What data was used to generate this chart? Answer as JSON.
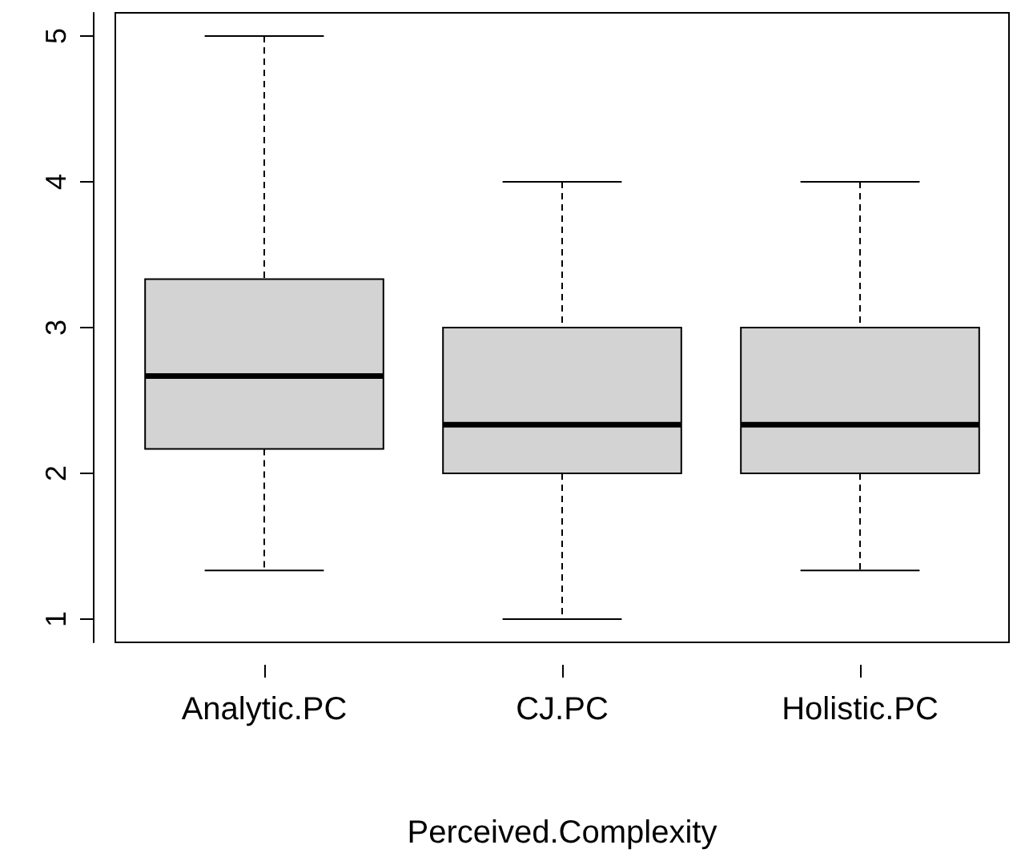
{
  "chart_data": {
    "type": "box",
    "xlabel": "Perceived.Complexity",
    "categories": [
      "Analytic.PC",
      "CJ.PC",
      "Holistic.PC"
    ],
    "boxes": [
      {
        "low": 1.333,
        "q1": 2.167,
        "median": 2.667,
        "q3": 3.333,
        "high": 5
      },
      {
        "low": 1,
        "q1": 2,
        "median": 2.333,
        "q3": 3,
        "high": 4
      },
      {
        "low": 1.333,
        "q1": 2,
        "median": 2.333,
        "q3": 3,
        "high": 4
      }
    ],
    "color": "#d3d3d3",
    "ylim": [
      0.84,
      5.16
    ],
    "yticks": [
      1,
      2,
      3,
      4,
      5
    ],
    "grid": false
  }
}
